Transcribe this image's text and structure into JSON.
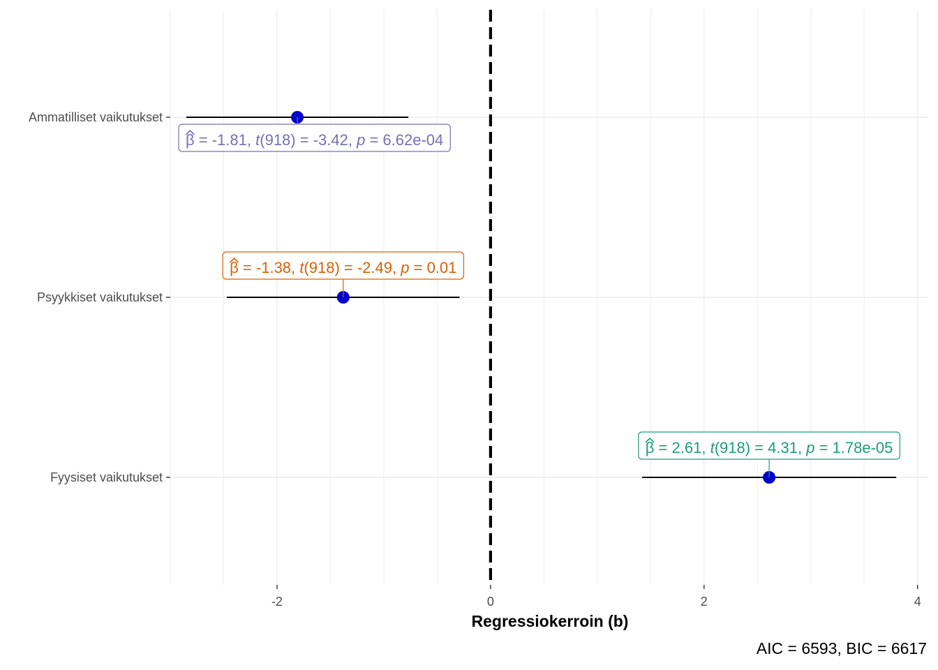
{
  "chart_data": {
    "type": "scatter",
    "subtype": "coefficient-plot",
    "categories": [
      "Ammatilliset vaikutukset",
      "Psyykkiset vaikutukset",
      "Fyysiset vaikutukset"
    ],
    "points": [
      {
        "category": "Ammatilliset vaikutukset",
        "estimate": -1.81,
        "ci_low": -2.85,
        "ci_high": -0.77,
        "label": {
          "beta": "-1.81",
          "t_df": "918",
          "t": "-3.42",
          "p": "6.62e-04"
        },
        "label_color": "#7570b3",
        "label_position": "below"
      },
      {
        "category": "Psyykkiset vaikutukset",
        "estimate": -1.38,
        "ci_low": -2.47,
        "ci_high": -0.29,
        "label": {
          "beta": "-1.38",
          "t_df": "918",
          "t": "-2.49",
          "p": "0.01"
        },
        "label_color": "#d95f02",
        "label_position": "above"
      },
      {
        "category": "Fyysiset vaikutukset",
        "estimate": 2.61,
        "ci_low": 1.42,
        "ci_high": 3.8,
        "label": {
          "beta": "2.61",
          "t_df": "918",
          "t": "4.31",
          "p": "1.78e-05"
        },
        "label_color": "#1b9e77",
        "label_position": "above"
      }
    ],
    "xlabel": "Regressiokerroin (b)",
    "ylabel": "",
    "xlim": [
      -3.0,
      4.1
    ],
    "xticks": [
      -2,
      0,
      2,
      4
    ],
    "xtick_labels": [
      "-2",
      "0",
      "2",
      "4"
    ],
    "reference_line": {
      "x": 0,
      "style": "dashed",
      "color": "#000000"
    },
    "point_color": "#0000cc",
    "grid": true,
    "caption": {
      "aic": "6593",
      "bic": "6617"
    }
  }
}
